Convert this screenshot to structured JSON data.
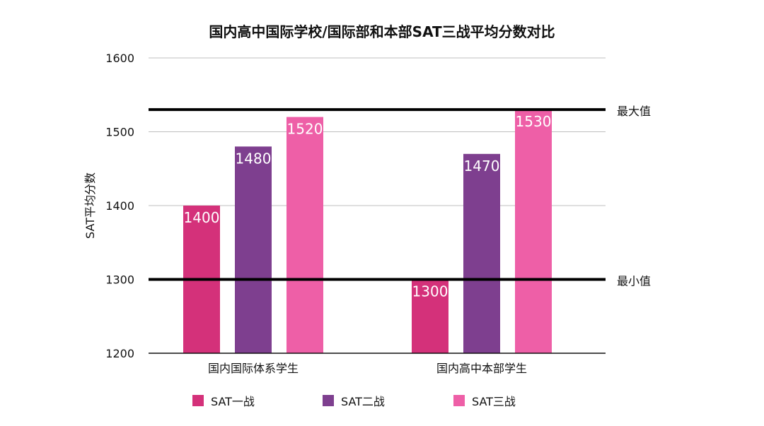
{
  "chart_data": {
    "type": "bar",
    "title": "国内高中国际学校/国际部和本部SAT三战平均分数对比",
    "ylabel": "SAT平均分数",
    "xlabel": "",
    "ylim": [
      1200,
      1600
    ],
    "yticks": [
      "1200",
      "1300",
      "1400",
      "1500",
      "1600"
    ],
    "grid": true,
    "legend_position": "bottom",
    "categories": [
      "国内国际体系学生",
      "国内高中本部学生"
    ],
    "series": [
      {
        "name": "SAT一战",
        "color": "#d4317a",
        "values": [
          1400,
          1300
        ],
        "labels": [
          "1400",
          "1300"
        ]
      },
      {
        "name": "SAT二战",
        "color": "#7e3f8f",
        "values": [
          1480,
          1470
        ],
        "labels": [
          "1480",
          "1470"
        ]
      },
      {
        "name": "SAT三战",
        "color": "#ee5fa7",
        "values": [
          1520,
          1530
        ],
        "labels": [
          "1520",
          "1530"
        ]
      }
    ],
    "reference_lines": [
      {
        "label": "最大值",
        "value": 1530
      },
      {
        "label": "最小值",
        "value": 1300
      }
    ]
  }
}
